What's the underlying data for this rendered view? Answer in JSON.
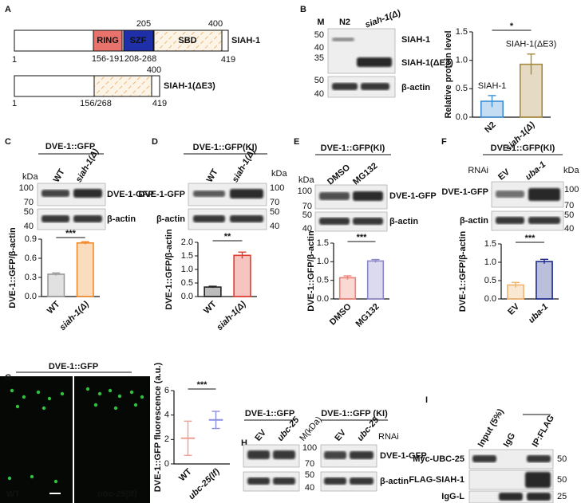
{
  "panel_a": {
    "letter": "A",
    "full": {
      "name": "SIAH-1",
      "ring": "RING",
      "szf": "SZF",
      "sbd": "SBD",
      "start": 1,
      "ring_range": "156-191",
      "szf_range": "208-268",
      "sbd_start": 205,
      "sbd_end": 400,
      "end": 419
    },
    "delta": {
      "name": "SIAH-1(ΔE3)",
      "start": 1,
      "deletion": "156/268",
      "sbd_end": 400,
      "end": 419
    }
  },
  "panel_b": {
    "letter": "B",
    "lanes": [
      "M",
      "N2",
      "siah-1(Δ)"
    ],
    "markers_top": [
      50,
      40,
      35
    ],
    "markers_bottom": [
      50,
      40
    ],
    "bands": [
      "SIAH-1",
      "SIAH-1(ΔE3)",
      "β-actin"
    ],
    "chart": {
      "type": "bar",
      "ylabel": "Relative protein level",
      "categories": [
        "N2",
        "siah-1(Δ)"
      ],
      "values": [
        0.28,
        0.93
      ],
      "errors": [
        0.1,
        0.18
      ],
      "colors": [
        "#3b8ed6",
        "#a8893a"
      ],
      "bar_labels": [
        "SIAH-1",
        "SIAH-1(ΔE3)"
      ],
      "significance": "*",
      "ylim": [
        0,
        1.5
      ],
      "yticks": [
        {
          "value": 0,
          "label": "0.0"
        },
        0.5,
        {
          "value": 1,
          "label": "1.0"
        },
        1.5
      ]
    }
  },
  "panel_c": {
    "letter": "C",
    "header": "DVE-1::GFP",
    "lanes": [
      "WT",
      "siah-1(Δ)"
    ],
    "kda": "kDa",
    "markers_top": [
      100,
      70
    ],
    "markers_bottom": [
      50,
      40
    ],
    "bands": [
      "DVE-1-GFP",
      "β-actin"
    ],
    "chart": {
      "type": "bar",
      "ylabel": "DVE-1::GFP/β-actin",
      "categories": [
        "WT",
        "siah-1(Δ)"
      ],
      "values": [
        0.35,
        0.84
      ],
      "errors": [
        0.02,
        0.02
      ],
      "colors": [
        "#9a9a9a",
        "#f08a2c"
      ],
      "significance": "***",
      "ylim": [
        0,
        0.9
      ],
      "yticks": [
        {
          "value": 0,
          "label": "0.0"
        },
        0.3,
        0.6,
        0.9
      ]
    }
  },
  "panel_d": {
    "letter": "D",
    "header": "DVE-1::GFP(KI)",
    "lanes": [
      "WT",
      "siah-1(Δ)"
    ],
    "kda": "kDa",
    "markers_top": [
      100,
      70
    ],
    "markers_bottom": [
      50,
      40
    ],
    "bands": [
      "DVE-1-GFP",
      "β-actin"
    ],
    "chart": {
      "type": "bar",
      "ylabel": "DVE-1::GFP/β-actin",
      "categories": [
        "WT",
        "siah-1(Δ)"
      ],
      "values": [
        0.35,
        1.52
      ],
      "errors": [
        0.03,
        0.12
      ],
      "colors": [
        "#222222",
        "#e53a2f"
      ],
      "significance": "**",
      "ylim": [
        0,
        2
      ],
      "yticks": [
        {
          "value": 0,
          "label": "0.0"
        },
        0.5,
        {
          "value": 1,
          "label": "1.0"
        },
        1.5,
        {
          "value": 2,
          "label": "2.0"
        }
      ]
    }
  },
  "panel_e": {
    "letter": "E",
    "header": "DVE-1::GFP(KI)",
    "lanes": [
      "DMSO",
      "MG132"
    ],
    "kda": "kDa",
    "markers_top": [
      100,
      70
    ],
    "markers_bottom": [
      50,
      40
    ],
    "bands": [
      "DVE-1-GFP",
      "β-actin"
    ],
    "chart": {
      "type": "bar",
      "ylabel": "DVE-1::GFP/β-actin",
      "categories": [
        "DMSO",
        "MG132"
      ],
      "values": [
        0.57,
        1.02
      ],
      "errors": [
        0.05,
        0.04
      ],
      "colors": [
        "#f07f72",
        "#8a86c8"
      ],
      "significance": "***",
      "ylim": [
        0,
        1.5
      ],
      "yticks": [
        {
          "value": 0,
          "label": "0.0"
        },
        0.5,
        {
          "value": 1,
          "label": "1.0"
        },
        1.5
      ]
    }
  },
  "panel_f": {
    "letter": "F",
    "header": "DVE-1::GFP(KI)",
    "rnai": "RNAi",
    "lanes": [
      "EV",
      "uba-1"
    ],
    "kda": "kDa",
    "markers_top": [
      100,
      70
    ],
    "markers_bottom": [
      50,
      40
    ],
    "bands": [
      "DVE-1-GFP",
      "β-actin"
    ],
    "chart": {
      "type": "bar",
      "ylabel": "DVE-1::GFP/β-actin",
      "categories": [
        "EV",
        "uba-1"
      ],
      "values": [
        0.38,
        1.02
      ],
      "errors": [
        0.07,
        0.06
      ],
      "colors": [
        "#f3b36b",
        "#1c2a8c"
      ],
      "significance": "***",
      "ylim": [
        0,
        1.5
      ],
      "yticks": [
        {
          "value": 0,
          "label": "0.0"
        },
        0.5,
        {
          "value": 1,
          "label": "1.0"
        },
        1.5
      ]
    }
  },
  "panel_g": {
    "letter": "G",
    "header": "DVE-1::GFP",
    "images": [
      "WT",
      "ubc-25(lf)"
    ],
    "chart": {
      "type": "dot",
      "ylabel": "DVE-1::GFP fluorescence (a.u.)",
      "categories": [
        "WT",
        "ubc-25(lf)"
      ],
      "values": [
        2.1,
        3.6
      ],
      "errors": [
        1.4,
        0.7
      ],
      "colors": [
        "#f0a090",
        "#8c90e0"
      ],
      "significance": "***",
      "ylim": [
        0,
        6
      ],
      "yticks": [
        0,
        2,
        4,
        6
      ]
    }
  },
  "panel_h": {
    "letter": "H",
    "headers": [
      "DVE-1::GFP",
      "DVE-1::GFP (KI)"
    ],
    "lanes": [
      "EV",
      "ubc-25",
      "M(kDa)",
      "EV",
      "ubc-25"
    ],
    "rnai": "RNAi",
    "markers": [
      100,
      70,
      50,
      40
    ],
    "bands": [
      "DVE-1-GFP",
      "β-actin"
    ]
  },
  "panel_i": {
    "letter": "I",
    "lanes": [
      "Input (5%)",
      "IgG",
      "IP:FLAG"
    ],
    "bands": [
      "Myc-UBC-25",
      "FLAG-SIAH-1",
      "IgG-L"
    ],
    "markers": [
      50,
      50,
      25
    ]
  }
}
